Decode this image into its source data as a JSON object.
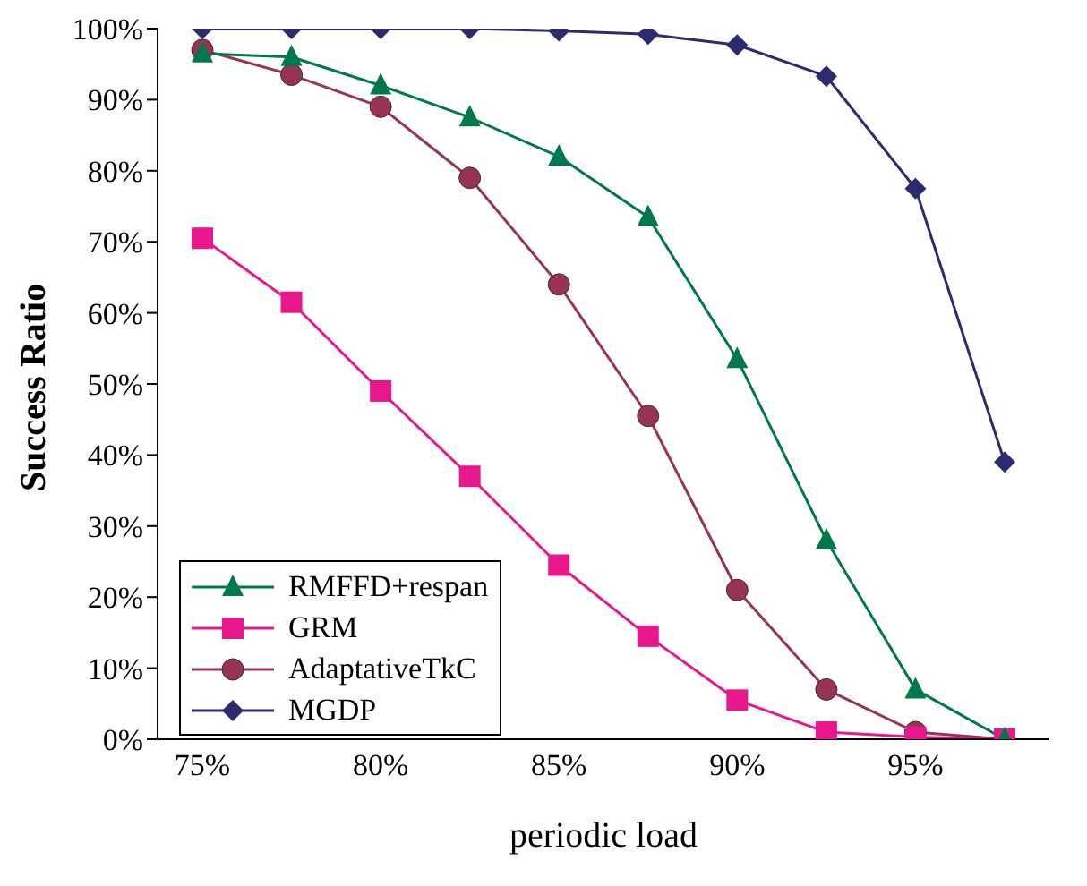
{
  "chart_data": {
    "type": "line",
    "xlabel": "periodic load",
    "ylabel": "Success Ratio",
    "categories": [
      "75%",
      null,
      "80%",
      null,
      "85%",
      null,
      "90%",
      null,
      "95%",
      null
    ],
    "ylim": [
      0,
      100
    ],
    "yticks": [
      {
        "value": 0,
        "label": "0%"
      },
      {
        "value": 10,
        "label": "10%"
      },
      {
        "value": 20,
        "label": "20%"
      },
      {
        "value": 30,
        "label": "30%"
      },
      {
        "value": 40,
        "label": "40%"
      },
      {
        "value": 50,
        "label": "50%"
      },
      {
        "value": 60,
        "label": "60%"
      },
      {
        "value": 70,
        "label": "70%"
      },
      {
        "value": 80,
        "label": "80%"
      },
      {
        "value": 90,
        "label": "90%"
      },
      {
        "value": 100,
        "label": "100%"
      }
    ],
    "grid": false,
    "legend": "bottom left",
    "line_style": "solid",
    "series": [
      {
        "name": "RMFFD+respan",
        "color": "#00794a",
        "marker": "triangle",
        "values": [
          96.5,
          96,
          92,
          87.5,
          82,
          73.5,
          53.5,
          28,
          7,
          0
        ]
      },
      {
        "name": "GRM",
        "color": "#e8188c",
        "marker": "square",
        "values": [
          70.5,
          61.5,
          49,
          37,
          24.5,
          14.5,
          5.5,
          1,
          0.3,
          0
        ]
      },
      {
        "name": "AdaptativeTkC",
        "color": "#993355",
        "marker": "circle",
        "values": [
          97,
          93.5,
          89,
          79,
          64,
          45.5,
          21,
          7,
          1,
          0
        ]
      },
      {
        "name": "MGDP",
        "color": "#2b2b6e",
        "marker": "diamond",
        "values": [
          100,
          100,
          100,
          100,
          99.7,
          99.2,
          97.7,
          93.3,
          77.5,
          39
        ]
      }
    ]
  }
}
